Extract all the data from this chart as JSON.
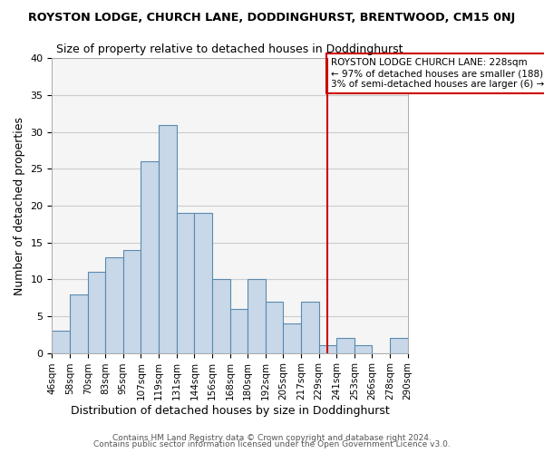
{
  "title": "ROYSTON LODGE, CHURCH LANE, DODDINGHURST, BRENTWOOD, CM15 0NJ",
  "subtitle": "Size of property relative to detached houses in Doddinghurst",
  "xlabel": "Distribution of detached houses by size in Doddinghurst",
  "ylabel": "Number of detached properties",
  "bin_labels": [
    "46sqm",
    "58sqm",
    "70sqm",
    "83sqm",
    "95sqm",
    "107sqm",
    "119sqm",
    "131sqm",
    "144sqm",
    "156sqm",
    "168sqm",
    "180sqm",
    "192sqm",
    "205sqm",
    "217sqm",
    "229sqm",
    "241sqm",
    "253sqm",
    "266sqm",
    "278sqm",
    "290sqm"
  ],
  "bar_heights": [
    3,
    8,
    11,
    13,
    14,
    26,
    31,
    19,
    19,
    10,
    6,
    10,
    7,
    4,
    7,
    1,
    2,
    1,
    0,
    2
  ],
  "bar_color": "#c8d8e8",
  "bar_edge_color": "#5a8ab0",
  "vline_x_index": 15.5,
  "vline_color": "#cc0000",
  "annotation_title": "ROYSTON LODGE CHURCH LANE: 228sqm",
  "annotation_line1": "← 97% of detached houses are smaller (188)",
  "annotation_line2": "3% of semi-detached houses are larger (6) →",
  "ylim": [
    0,
    40
  ],
  "footnote1": "Contains HM Land Registry data © Crown copyright and database right 2024.",
  "footnote2": "Contains public sector information licensed under the Open Government Licence v3.0.",
  "grid_color": "#cccccc",
  "background_color": "#f5f5f5"
}
